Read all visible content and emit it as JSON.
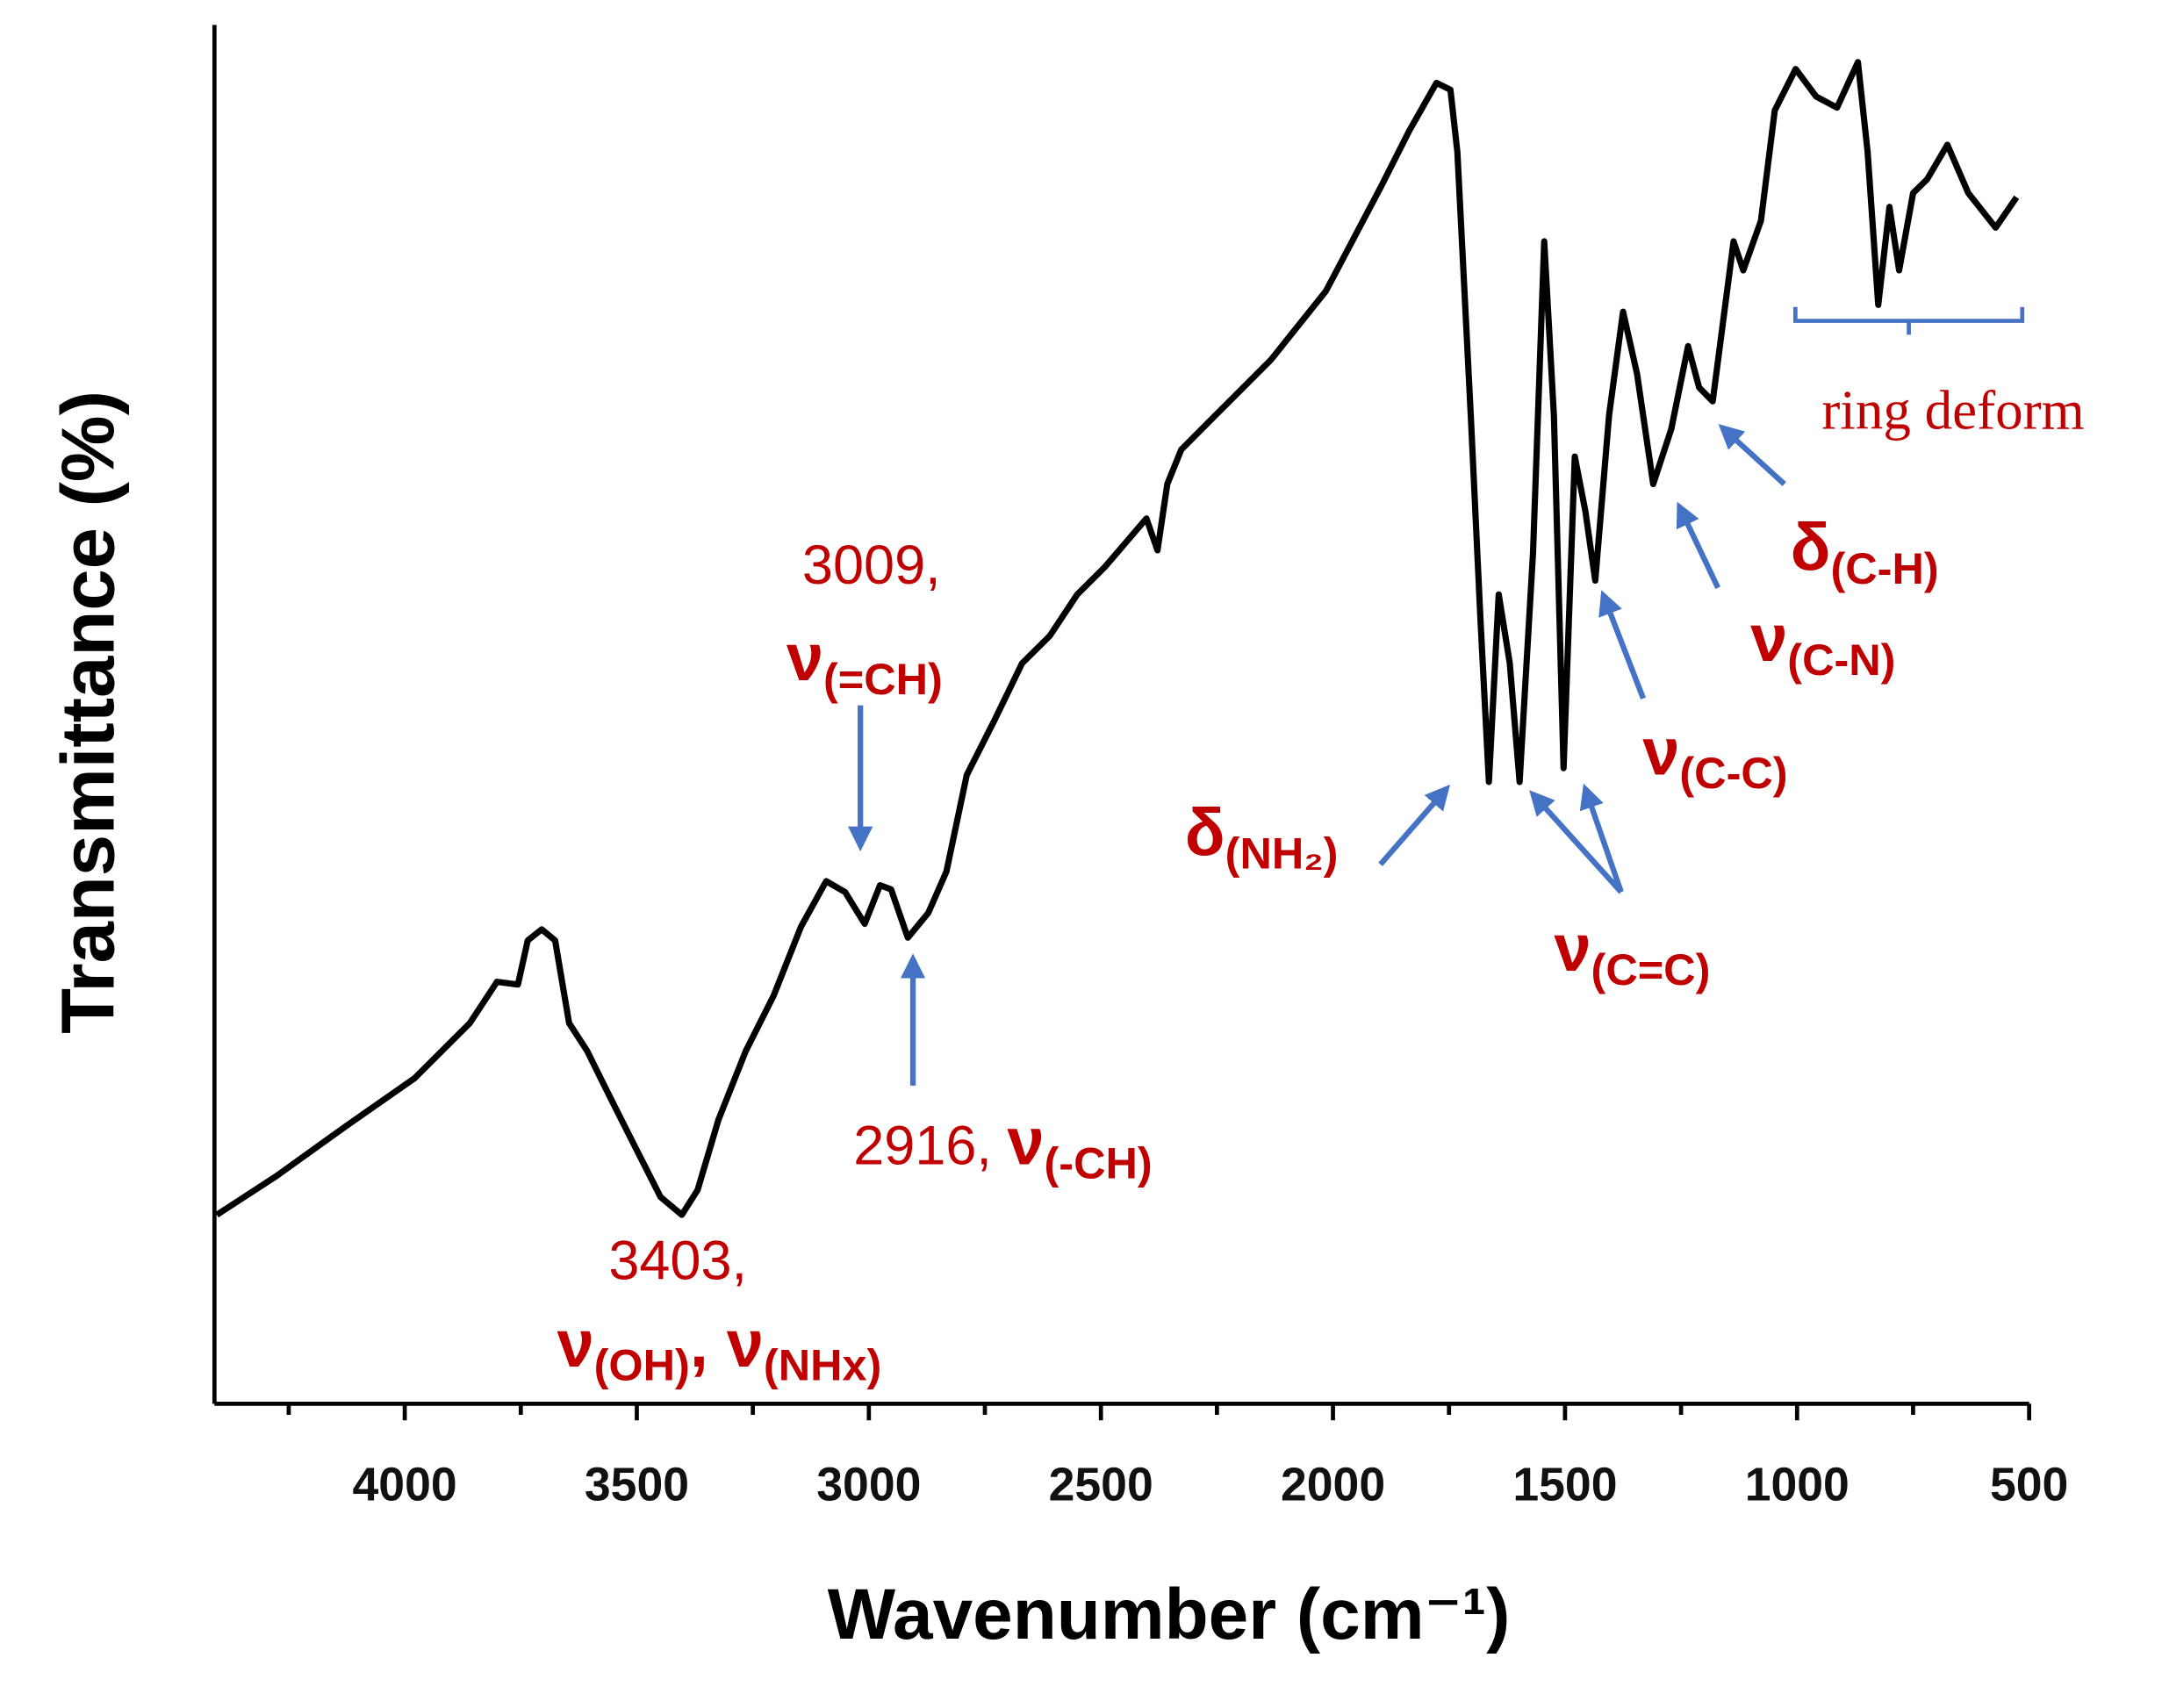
{
  "chart_data": {
    "type": "line",
    "xlabel": "Wavenumber (cm⁻¹)",
    "ylabel": "Transmittance (%)",
    "xlim": [
      4410,
      500
    ],
    "ylim": [
      0,
      100
    ],
    "xticks": [
      4000,
      3500,
      3000,
      2500,
      2000,
      1500,
      1000,
      500
    ],
    "xticks_minor": [
      4250,
      3750,
      3250,
      2750,
      2250,
      1750,
      1250,
      750
    ],
    "color": "#000000",
    "annotation_color": "#c00000",
    "arrow_color": "#4472c4",
    "x": [
      4405,
      4277,
      4128,
      3979,
      3860,
      3801,
      3756,
      3735,
      3705,
      3676,
      3646,
      3607,
      3563,
      3503,
      3449,
      3403,
      3369,
      3324,
      3265,
      3205,
      3146,
      3092,
      3051,
      3009,
      2976,
      2952,
      2916,
      2872,
      2833,
      2789,
      2729,
      2670,
      2610,
      2551,
      2491,
      2402,
      2378,
      2357,
      2327,
      2253,
      2134,
      2015,
      1896,
      1836,
      1777,
      1747,
      1732,
      1703,
      1682,
      1664,
      1643,
      1619,
      1598,
      1569,
      1545,
      1524,
      1503,
      1479,
      1456,
      1435,
      1405,
      1375,
      1345,
      1310,
      1271,
      1235,
      1211,
      1182,
      1137,
      1116,
      1078,
      1048,
      1003,
      959,
      914,
      869,
      848,
      825,
      801,
      780,
      750,
      720,
      676,
      631,
      572,
      527
    ],
    "values": [
      13.7,
      16.5,
      20.1,
      23.6,
      27.6,
      30.6,
      30.4,
      33.6,
      34.4,
      33.6,
      27.6,
      25.6,
      22.6,
      18.6,
      15.0,
      13.7,
      15.5,
      20.6,
      25.6,
      29.6,
      34.6,
      37.9,
      37.1,
      34.8,
      37.6,
      37.3,
      33.8,
      35.6,
      38.6,
      45.6,
      49.6,
      53.7,
      55.7,
      58.7,
      60.7,
      64.2,
      61.9,
      66.7,
      69.2,
      71.7,
      75.7,
      80.7,
      88.3,
      92.3,
      95.8,
      95.3,
      90.8,
      71.7,
      56.7,
      45.1,
      58.7,
      53.7,
      45.1,
      61.7,
      84.3,
      71.7,
      46.1,
      68.7,
      64.7,
      59.7,
      71.7,
      79.2,
      74.7,
      66.7,
      70.7,
      76.7,
      73.7,
      72.7,
      84.3,
      82.2,
      85.8,
      93.8,
      96.8,
      94.8,
      94.0,
      97.3,
      90.8,
      79.7,
      86.8,
      82.2,
      87.8,
      88.8,
      91.3,
      87.8,
      85.3,
      87.5
    ],
    "annotations": [
      {
        "lines": [
          [
            {
              "text": "3403,"
            }
          ],
          [
            {
              "text": "ν",
              "bold": true
            },
            {
              "text": "(OH)",
              "sub": true
            },
            {
              "text": ", ν",
              "bold": true
            },
            {
              "text": "(NHx)",
              "sub": true
            }
          ]
        ]
      },
      {
        "lines": [
          [
            {
              "text": "3009,"
            }
          ],
          [
            {
              "text": "ν",
              "bold": true
            },
            {
              "text": "(=CH)",
              "sub": true
            }
          ]
        ]
      },
      {
        "lines": [
          [
            {
              "text": "2916, "
            },
            {
              "text": "ν",
              "bold": true
            },
            {
              "text": "(-CH)",
              "sub": true
            }
          ]
        ]
      },
      {
        "lines": [
          [
            {
              "text": "δ",
              "bold": true
            },
            {
              "text": "(NH₂)",
              "sub": true
            }
          ]
        ]
      },
      {
        "lines": [
          [
            {
              "text": "ν",
              "bold": true
            },
            {
              "text": "(C=C)",
              "sub": true
            }
          ]
        ]
      },
      {
        "lines": [
          [
            {
              "text": "ν",
              "bold": true
            },
            {
              "text": "(C-C)",
              "sub": true
            }
          ]
        ]
      },
      {
        "lines": [
          [
            {
              "text": "ν",
              "bold": true
            },
            {
              "text": "(C-N)",
              "sub": true
            }
          ]
        ]
      },
      {
        "lines": [
          [
            {
              "text": "δ",
              "bold": true
            },
            {
              "text": "(C-H)",
              "sub": true
            }
          ]
        ]
      }
    ],
    "bracket_label": "ring deform"
  }
}
